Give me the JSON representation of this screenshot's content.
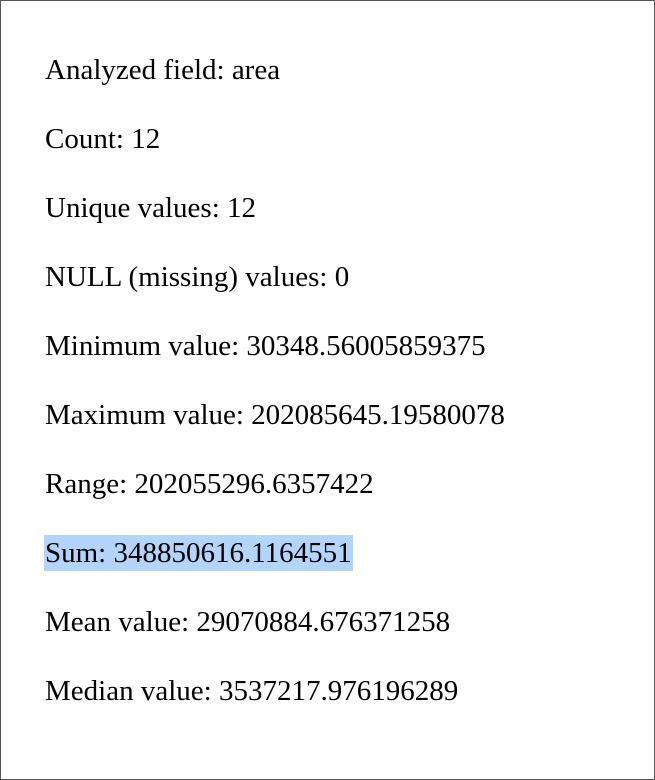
{
  "stats": [
    {
      "label": "Analyzed field",
      "value": "area",
      "text": "Analyzed field: area",
      "selected": false
    },
    {
      "label": "Count",
      "value": "12",
      "text": "Count: 12",
      "selected": false
    },
    {
      "label": "Unique values",
      "value": "12",
      "text": "Unique values: 12",
      "selected": false
    },
    {
      "label": "NULL (missing) values",
      "value": "0",
      "text": "NULL (missing) values: 0",
      "selected": false
    },
    {
      "label": "Minimum value",
      "value": "30348.56005859375",
      "text": "Minimum value: 30348.56005859375",
      "selected": false
    },
    {
      "label": "Maximum value",
      "value": "202085645.19580078",
      "text": "Maximum value: 202085645.19580078",
      "selected": false
    },
    {
      "label": "Range",
      "value": "202055296.6357422",
      "text": "Range: 202055296.6357422",
      "selected": false
    },
    {
      "label": "Sum",
      "value": "348850616.1164551",
      "text": "Sum: 348850616.1164551",
      "selected": true
    },
    {
      "label": "Mean value",
      "value": "29070884.676371258",
      "text": "Mean value: 29070884.676371258",
      "selected": false
    },
    {
      "label": "Median value",
      "value": "3537217.976196289",
      "text": "Median value: 3537217.976196289",
      "selected": false
    }
  ],
  "colors": {
    "selection_highlight": "#b3d4fc",
    "text": "#000000",
    "background": "#ffffff",
    "border": "#555555"
  }
}
